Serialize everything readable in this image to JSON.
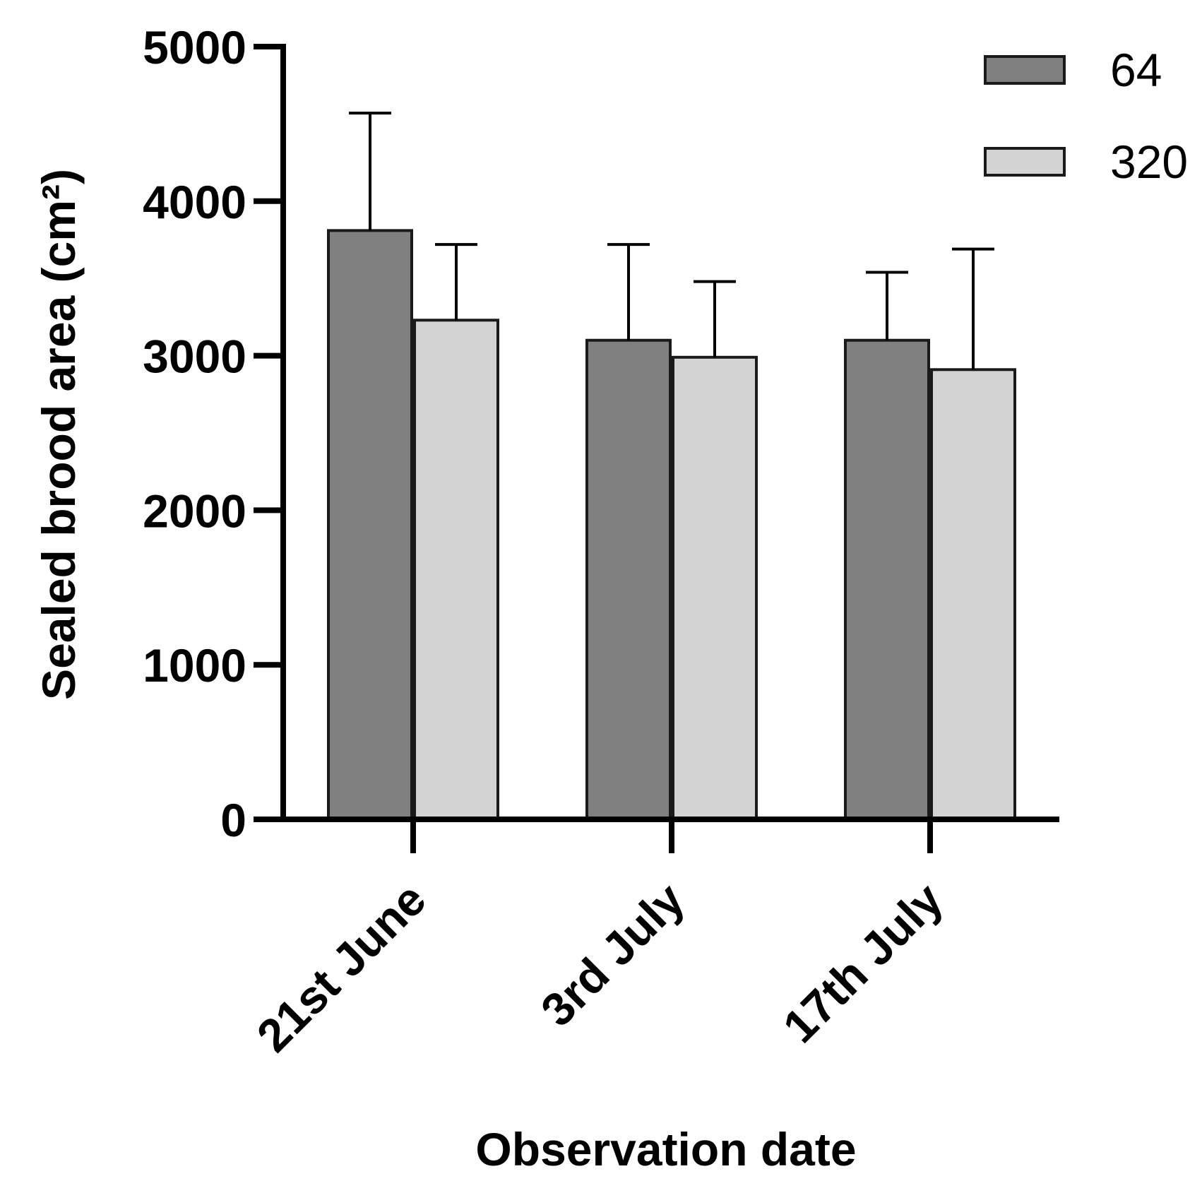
{
  "chart_data": {
    "type": "bar",
    "title": "",
    "xlabel": "Observation date",
    "ylabel": "Sealed brood area (cm²)",
    "ylim": [
      0,
      5000
    ],
    "yticks": [
      0,
      1000,
      2000,
      3000,
      4000,
      5000
    ],
    "categories": [
      "21st June",
      "3rd July",
      "17th July"
    ],
    "series": [
      {
        "name": "64",
        "color": "#808080",
        "values": [
          3810,
          3100,
          3100
        ],
        "error_upper": [
          4570,
          3720,
          3540
        ]
      },
      {
        "name": "320",
        "color": "#d3d3d3",
        "values": [
          3230,
          2990,
          2910
        ],
        "error_upper": [
          3720,
          3480,
          3690
        ]
      }
    ],
    "legend_position": "top-right",
    "grid": false
  }
}
